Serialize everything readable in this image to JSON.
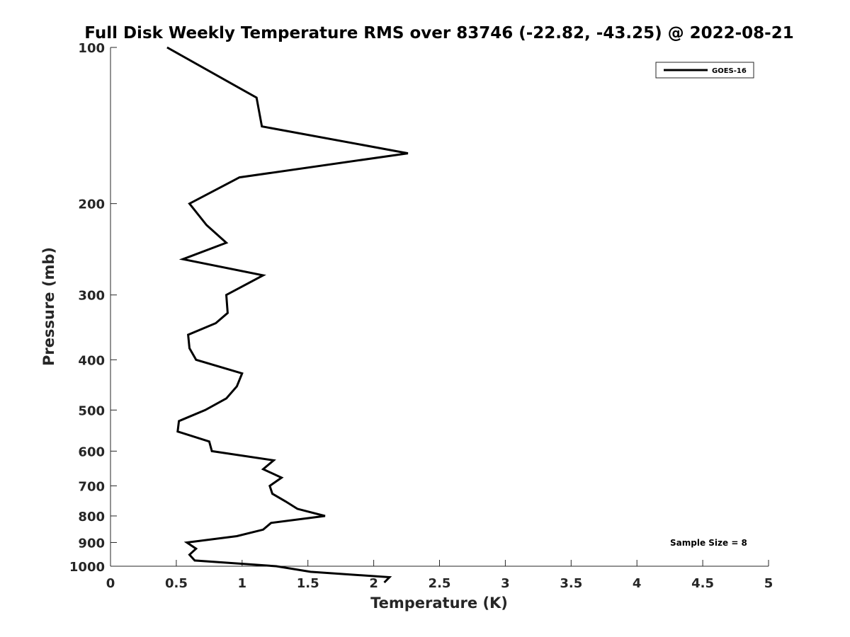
{
  "chart_data": {
    "type": "line",
    "title": "Full Disk Weekly Temperature RMS over 83746 (-22.82, -43.25) @ 2022-08-21",
    "xlabel": "Temperature (K)",
    "ylabel": "Pressure (mb)",
    "xlim": [
      0,
      5
    ],
    "ylim": [
      1000,
      100
    ],
    "y_scale": "log",
    "grid": false,
    "legend_position": "top-right",
    "x_ticks": [
      "0",
      "0.5",
      "1",
      "1.5",
      "2",
      "2.5",
      "3",
      "3.5",
      "4",
      "4.5",
      "5"
    ],
    "y_ticks": [
      "100",
      "200",
      "300",
      "400",
      "500",
      "600",
      "700",
      "800",
      "900",
      "1000"
    ],
    "series": [
      {
        "name": "GOES-16",
        "color": "#000000",
        "x": [
          0.43,
          1.11,
          1.15,
          2.26,
          0.98,
          0.6,
          0.73,
          0.88,
          0.55,
          1.16,
          0.88,
          0.89,
          0.8,
          0.59,
          0.6,
          0.65,
          1.0,
          0.96,
          0.88,
          0.72,
          0.52,
          0.51,
          0.75,
          0.77,
          1.24,
          1.16,
          1.3,
          1.21,
          1.23,
          1.33,
          1.42,
          1.63,
          1.22,
          1.16,
          0.96,
          0.58,
          0.65,
          0.6,
          0.64,
          1.26,
          1.52,
          2.12,
          2.08
        ],
        "y": [
          100,
          125,
          142,
          160,
          178,
          200,
          220,
          238,
          256,
          275,
          300,
          325,
          340,
          358,
          380,
          400,
          425,
          450,
          475,
          500,
          525,
          550,
          575,
          600,
          625,
          650,
          675,
          700,
          725,
          750,
          775,
          800,
          825,
          850,
          875,
          900,
          925,
          950,
          975,
          1000,
          1025,
          1050,
          1075
        ]
      }
    ],
    "annotations": [
      "Sample Size = 8"
    ]
  }
}
